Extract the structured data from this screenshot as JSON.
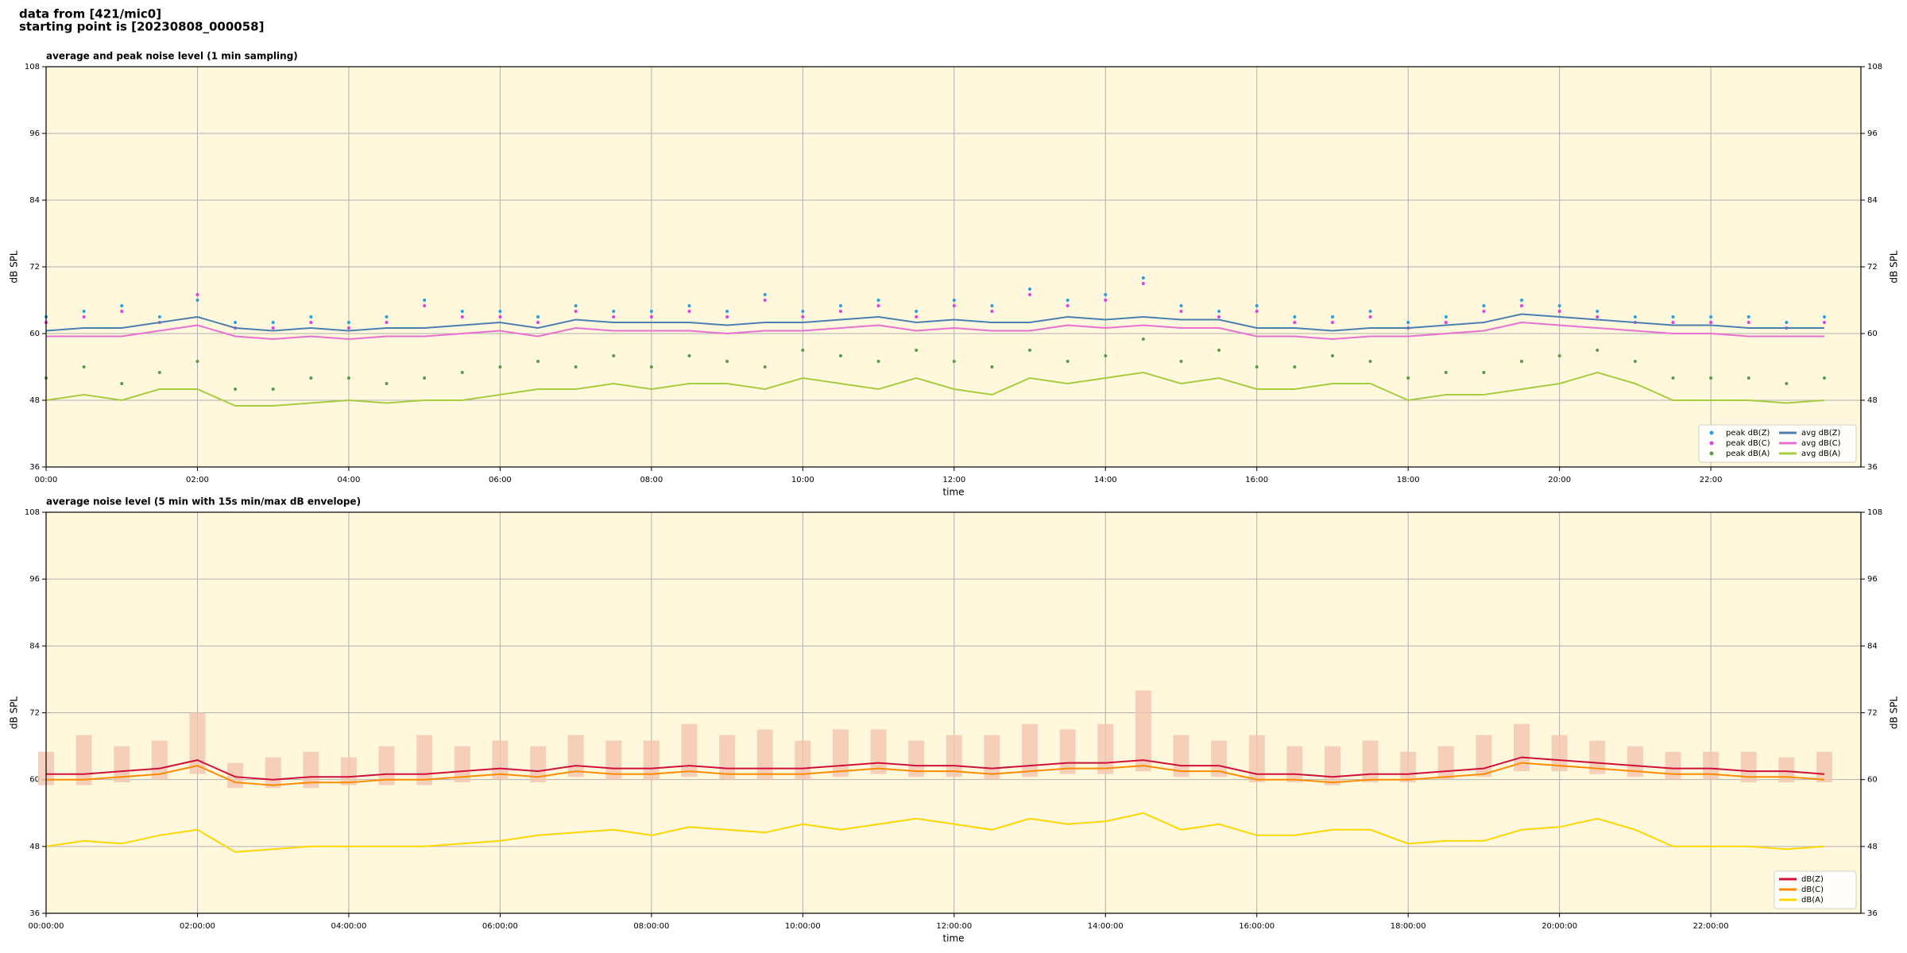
{
  "header": {
    "lines": [
      "data from [421/mic0]",
      "starting point is [20230808_000058]"
    ]
  },
  "chart_data": [
    {
      "type": "line",
      "title": "average and peak noise level (1 min sampling)",
      "xlabel": "time",
      "ylabel": "dB SPL",
      "y2label": "dB SPL",
      "background": "#fff8dc",
      "grid": true,
      "legend": "lower right",
      "ylim": [
        36,
        108
      ],
      "yticks": [
        36,
        48,
        60,
        72,
        84,
        96,
        108
      ],
      "xlim": [
        "00:00",
        "23:59"
      ],
      "xticks": [
        "00:00",
        "02:00",
        "04:00",
        "06:00",
        "08:00",
        "10:00",
        "12:00",
        "14:00",
        "16:00",
        "18:00",
        "20:00",
        "22:00"
      ],
      "x": [
        "00:00",
        "00:30",
        "01:00",
        "01:30",
        "02:00",
        "02:30",
        "03:00",
        "03:30",
        "04:00",
        "04:30",
        "05:00",
        "05:30",
        "06:00",
        "06:30",
        "07:00",
        "07:30",
        "08:00",
        "08:30",
        "09:00",
        "09:30",
        "10:00",
        "10:30",
        "11:00",
        "11:30",
        "12:00",
        "12:30",
        "13:00",
        "13:30",
        "14:00",
        "14:30",
        "15:00",
        "15:30",
        "16:00",
        "16:30",
        "17:00",
        "17:30",
        "18:00",
        "18:30",
        "19:00",
        "19:30",
        "20:00",
        "20:30",
        "21:00",
        "21:30",
        "22:00",
        "22:30",
        "23:00",
        "23:30"
      ],
      "series": [
        {
          "name": "peak dB(Z)",
          "type": "scatter",
          "color": "#2a9fe0",
          "values": [
            63,
            64,
            65,
            63,
            66,
            62,
            62,
            63,
            62,
            63,
            66,
            64,
            64,
            63,
            65,
            64,
            64,
            65,
            64,
            67,
            64,
            65,
            66,
            64,
            66,
            65,
            68,
            66,
            67,
            70,
            65,
            64,
            65,
            63,
            63,
            64,
            62,
            63,
            65,
            66,
            65,
            64,
            63,
            63,
            63,
            63,
            62,
            63
          ]
        },
        {
          "name": "peak dB(C)",
          "type": "scatter",
          "color": "#e040e0",
          "values": [
            62,
            63,
            64,
            62,
            67,
            61,
            61,
            62,
            61,
            62,
            65,
            63,
            63,
            62,
            64,
            63,
            63,
            64,
            63,
            66,
            63,
            64,
            65,
            63,
            65,
            64,
            67,
            65,
            66,
            69,
            64,
            63,
            64,
            62,
            62,
            63,
            61,
            62,
            64,
            65,
            64,
            63,
            62,
            62,
            62,
            62,
            61,
            62
          ]
        },
        {
          "name": "peak dB(A)",
          "type": "scatter",
          "color": "#5a9a50",
          "values": [
            52,
            54,
            51,
            53,
            55,
            50,
            50,
            52,
            52,
            51,
            52,
            53,
            54,
            55,
            54,
            56,
            54,
            56,
            55,
            54,
            57,
            56,
            55,
            57,
            55,
            54,
            57,
            55,
            56,
            59,
            55,
            57,
            54,
            54,
            56,
            55,
            52,
            53,
            53,
            55,
            56,
            57,
            55,
            52,
            52,
            52,
            51,
            52
          ]
        },
        {
          "name": "avg dB(Z)",
          "type": "line",
          "color": "#4a7fb0",
          "values": [
            60.5,
            61,
            61,
            62,
            63,
            61,
            60.5,
            61,
            60.5,
            61,
            61,
            61.5,
            62,
            61,
            62.5,
            62,
            62,
            62,
            61.5,
            62,
            62,
            62.5,
            63,
            62,
            62.5,
            62,
            62,
            63,
            62.5,
            63,
            62.5,
            62.5,
            61,
            61,
            60.5,
            61,
            61,
            61.5,
            62,
            63.5,
            63,
            62.5,
            62,
            61.5,
            61.5,
            61,
            61,
            61
          ]
        },
        {
          "name": "avg dB(C)",
          "type": "line",
          "color": "#e870d0",
          "values": [
            59.5,
            59.5,
            59.5,
            60.5,
            61.5,
            59.5,
            59,
            59.5,
            59,
            59.5,
            59.5,
            60,
            60.5,
            59.5,
            61,
            60.5,
            60.5,
            60.5,
            60,
            60.5,
            60.5,
            61,
            61.5,
            60.5,
            61,
            60.5,
            60.5,
            61.5,
            61,
            61.5,
            61,
            61,
            59.5,
            59.5,
            59,
            59.5,
            59.5,
            60,
            60.5,
            62,
            61.5,
            61,
            60.5,
            60,
            60,
            59.5,
            59.5,
            59.5
          ]
        },
        {
          "name": "avg dB(A)",
          "type": "line",
          "color": "#a8cc40",
          "values": [
            48,
            49,
            48,
            50,
            50,
            47,
            47,
            47.5,
            48,
            47.5,
            48,
            48,
            49,
            50,
            50,
            51,
            50,
            51,
            51,
            50,
            52,
            51,
            50,
            52,
            50,
            49,
            52,
            51,
            52,
            53,
            51,
            52,
            50,
            50,
            51,
            51,
            48,
            49,
            49,
            50,
            51,
            53,
            51,
            48,
            48,
            48,
            47.5,
            48
          ]
        }
      ]
    },
    {
      "type": "line",
      "title": "average noise level (5 min with 15s min/max dB envelope)",
      "xlabel": "time",
      "ylabel": "dB SPL",
      "y2label": "dB SPL",
      "background": "#fff8dc",
      "grid": true,
      "legend": "lower right",
      "ylim": [
        36,
        108
      ],
      "yticks": [
        36,
        48,
        60,
        72,
        84,
        96,
        108
      ],
      "xlim": [
        "00:00:00",
        "23:59:00"
      ],
      "xticks": [
        "00:00:00",
        "02:00:00",
        "04:00:00",
        "06:00:00",
        "08:00:00",
        "10:00:00",
        "12:00:00",
        "14:00:00",
        "16:00:00",
        "18:00:00",
        "20:00:00",
        "22:00:00"
      ],
      "x": [
        "00:00:00",
        "00:30:00",
        "01:00:00",
        "01:30:00",
        "02:00:00",
        "02:30:00",
        "03:00:00",
        "03:30:00",
        "04:00:00",
        "04:30:00",
        "05:00:00",
        "05:30:00",
        "06:00:00",
        "06:30:00",
        "07:00:00",
        "07:30:00",
        "08:00:00",
        "08:30:00",
        "09:00:00",
        "09:30:00",
        "10:00:00",
        "10:30:00",
        "11:00:00",
        "11:30:00",
        "12:00:00",
        "12:30:00",
        "13:00:00",
        "13:30:00",
        "14:00:00",
        "14:30:00",
        "15:00:00",
        "15:30:00",
        "16:00:00",
        "16:30:00",
        "17:00:00",
        "17:30:00",
        "18:00:00",
        "18:30:00",
        "19:00:00",
        "19:30:00",
        "20:00:00",
        "20:30:00",
        "21:00:00",
        "21:30:00",
        "22:00:00",
        "22:30:00",
        "23:00:00",
        "23:30:00"
      ],
      "envelope": {
        "color": "#f4c4b0",
        "min": [
          59,
          59,
          59.5,
          60,
          61,
          58.5,
          58.5,
          58.5,
          59,
          59,
          59,
          59.5,
          60,
          59.5,
          60.5,
          60,
          60,
          60.5,
          60,
          60,
          60,
          60.5,
          61,
          60.5,
          60.5,
          60,
          60.5,
          61,
          61,
          61.5,
          60.5,
          60.5,
          59.5,
          59.5,
          59,
          59.5,
          59.5,
          60,
          60.5,
          61.5,
          61.5,
          61,
          60.5,
          60,
          60,
          59.5,
          59.5,
          59.5
        ],
        "max": [
          65,
          68,
          66,
          67,
          72,
          63,
          64,
          65,
          64,
          66,
          68,
          66,
          67,
          66,
          68,
          67,
          67,
          70,
          68,
          69,
          67,
          69,
          69,
          67,
          68,
          68,
          70,
          69,
          70,
          76,
          68,
          67,
          68,
          66,
          66,
          67,
          65,
          66,
          68,
          70,
          68,
          67,
          66,
          65,
          65,
          65,
          64,
          65
        ]
      },
      "series": [
        {
          "name": "dB(Z)",
          "type": "line",
          "color": "#d0103a",
          "values": [
            61,
            61,
            61.5,
            62,
            63.5,
            60.5,
            60,
            60.5,
            60.5,
            61,
            61,
            61.5,
            62,
            61.5,
            62.5,
            62,
            62,
            62.5,
            62,
            62,
            62,
            62.5,
            63,
            62.5,
            62.5,
            62,
            62.5,
            63,
            63,
            63.5,
            62.5,
            62.5,
            61,
            61,
            60.5,
            61,
            61,
            61.5,
            62,
            64,
            63.5,
            63,
            62.5,
            62,
            62,
            61.5,
            61.5,
            61
          ]
        },
        {
          "name": "dB(C)",
          "type": "line",
          "color": "#ff8c00",
          "values": [
            60,
            60,
            60.5,
            61,
            62.5,
            59.5,
            59,
            59.5,
            59.5,
            60,
            60,
            60.5,
            61,
            60.5,
            61.5,
            61,
            61,
            61.5,
            61,
            61,
            61,
            61.5,
            62,
            61.5,
            61.5,
            61,
            61.5,
            62,
            62,
            62.5,
            61.5,
            61.5,
            60,
            60,
            59.5,
            60,
            60,
            60.5,
            61,
            63,
            62.5,
            62,
            61.5,
            61,
            61,
            60.5,
            60.5,
            60
          ]
        },
        {
          "name": "dB(A)",
          "type": "line",
          "color": "#ffd700",
          "values": [
            48,
            49,
            48.5,
            50,
            51,
            47,
            47.5,
            48,
            48,
            48,
            48,
            48.5,
            49,
            50,
            50.5,
            51,
            50,
            51.5,
            51,
            50.5,
            52,
            51,
            52,
            53,
            52,
            51,
            53,
            52,
            52.5,
            54,
            51,
            52,
            50,
            50,
            51,
            51,
            48.5,
            49,
            49,
            51,
            51.5,
            53,
            51,
            48,
            48,
            48,
            47.5,
            48
          ]
        }
      ]
    }
  ]
}
